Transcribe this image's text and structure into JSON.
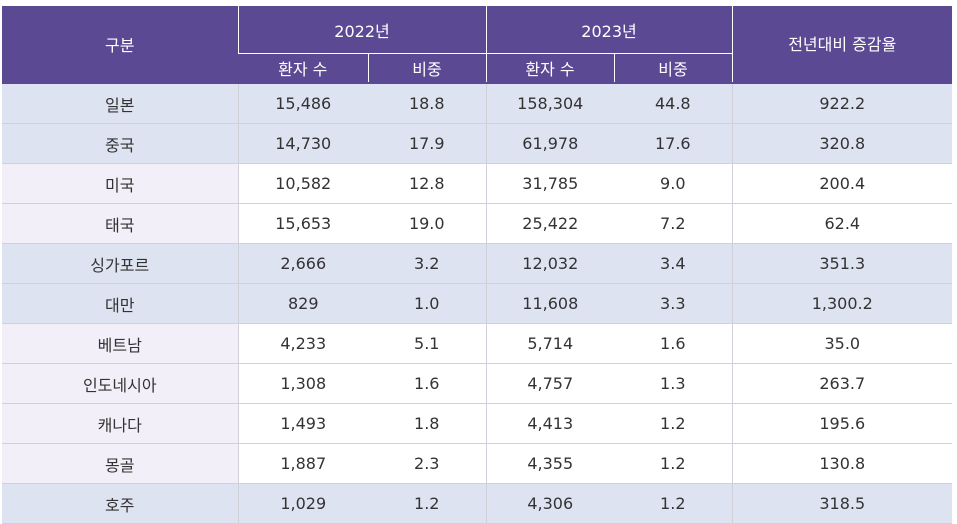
{
  "header": {
    "category": "구분",
    "year_2022": "2022년",
    "year_2023": "2023년",
    "change": "전년대비 증감율",
    "patients": "환자 수",
    "share": "비중"
  },
  "colors": {
    "header_bg": "#5b4a93",
    "highlight_row": "#dde3f1",
    "category_cell": "#f2eff8"
  },
  "rows": [
    {
      "country": "일본",
      "p2022": "15,486",
      "s2022": "18.8",
      "p2023": "158,304",
      "s2023": "44.8",
      "change": "922.2",
      "highlight": true
    },
    {
      "country": "중국",
      "p2022": "14,730",
      "s2022": "17.9",
      "p2023": "61,978",
      "s2023": "17.6",
      "change": "320.8",
      "highlight": true
    },
    {
      "country": "미국",
      "p2022": "10,582",
      "s2022": "12.8",
      "p2023": "31,785",
      "s2023": "9.0",
      "change": "200.4",
      "highlight": false
    },
    {
      "country": "태국",
      "p2022": "15,653",
      "s2022": "19.0",
      "p2023": "25,422",
      "s2023": "7.2",
      "change": "62.4",
      "highlight": false
    },
    {
      "country": "싱가포르",
      "p2022": "2,666",
      "s2022": "3.2",
      "p2023": "12,032",
      "s2023": "3.4",
      "change": "351.3",
      "highlight": true
    },
    {
      "country": "대만",
      "p2022": "829",
      "s2022": "1.0",
      "p2023": "11,608",
      "s2023": "3.3",
      "change": "1,300.2",
      "highlight": true
    },
    {
      "country": "베트남",
      "p2022": "4,233",
      "s2022": "5.1",
      "p2023": "5,714",
      "s2023": "1.6",
      "change": "35.0",
      "highlight": false
    },
    {
      "country": "인도네시아",
      "p2022": "1,308",
      "s2022": "1.6",
      "p2023": "4,757",
      "s2023": "1.3",
      "change": "263.7",
      "highlight": false
    },
    {
      "country": "캐나다",
      "p2022": "1,493",
      "s2022": "1.8",
      "p2023": "4,413",
      "s2023": "1.2",
      "change": "195.6",
      "highlight": false
    },
    {
      "country": "몽골",
      "p2022": "1,887",
      "s2022": "2.3",
      "p2023": "4,355",
      "s2023": "1.2",
      "change": "130.8",
      "highlight": false
    },
    {
      "country": "호주",
      "p2022": "1,029",
      "s2022": "1.2",
      "p2023": "4,306",
      "s2023": "1.2",
      "change": "318.5",
      "highlight": true
    }
  ]
}
